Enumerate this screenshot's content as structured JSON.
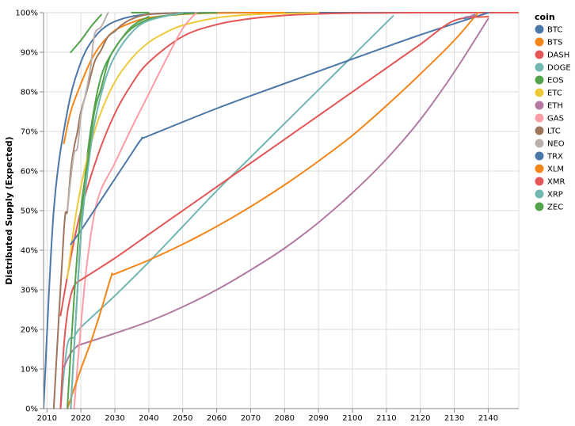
{
  "chart_data": {
    "type": "line",
    "xlabel": "",
    "ylabel": "Distributed Supply (Expected)",
    "xlim": [
      2009,
      2149
    ],
    "ylim": [
      0,
      100
    ],
    "x_ticks": [
      "2010",
      "2020",
      "2030",
      "2040",
      "2050",
      "2060",
      "2070",
      "2080",
      "2090",
      "2100",
      "2110",
      "2120",
      "2130",
      "2140"
    ],
    "y_ticks": [
      "0%",
      "10%",
      "20%",
      "30%",
      "40%",
      "50%",
      "60%",
      "70%",
      "80%",
      "90%",
      "100%"
    ],
    "grid": true,
    "legend_title": "coin",
    "legend_position": "right",
    "series": [
      {
        "name": "BTC",
        "color": "#4c78a8",
        "x": [
          2009,
          2012,
          2016,
          2020,
          2024,
          2028,
          2032,
          2036,
          2040,
          2048,
          2060,
          2080,
          2100,
          2120,
          2140
        ],
        "values": [
          0,
          50,
          75,
          87.5,
          93.75,
          96.9,
          98.4,
          99.2,
          99.6,
          99.9,
          99.98,
          100,
          100,
          100,
          100
        ]
      },
      {
        "name": "BTS",
        "color": "#f58518",
        "x": [
          2015,
          2017,
          2020,
          2023,
          2026,
          2030,
          2035,
          2040,
          2050,
          2060,
          2070,
          2080
        ],
        "values": [
          67,
          75,
          82,
          88,
          92,
          95.5,
          97.5,
          98.7,
          99.6,
          99.9,
          100,
          100
        ]
      },
      {
        "name": "DASH",
        "color": "#e45756",
        "x": [
          2014,
          2017,
          2020,
          2025,
          2030,
          2035,
          2040,
          2050,
          2060,
          2070,
          2080,
          2090,
          2100,
          2120,
          2150
        ],
        "values": [
          23.5,
          38,
          50,
          64,
          74.5,
          82,
          87.5,
          94,
          97,
          98.5,
          99.3,
          99.7,
          99.9,
          100,
          100
        ]
      },
      {
        "name": "DOGE",
        "color": "#72b7b2",
        "x": [
          2014,
          2016,
          2018,
          2020,
          2030,
          2040,
          2050,
          2060,
          2070,
          2080,
          2090,
          2100,
          2110,
          2112
        ],
        "values": [
          0,
          16,
          18,
          20.5,
          28.5,
          37,
          46,
          55,
          63.5,
          72,
          80.5,
          89,
          97.5,
          99.2
        ]
      },
      {
        "name": "EOS",
        "color": "#54a24b",
        "x": [
          2017,
          2019,
          2021,
          2023,
          2026,
          2030,
          2034,
          2038,
          2042,
          2050,
          2060
        ],
        "values": [
          0,
          30,
          56,
          71,
          84,
          91,
          95.3,
          97.6,
          98.8,
          99.7,
          100
        ]
      },
      {
        "name": "ETC",
        "color": "#eeca3b",
        "x": [
          2016,
          2018,
          2020,
          2023,
          2026,
          2030,
          2035,
          2040,
          2045,
          2050,
          2060,
          2070,
          2080,
          2090
        ],
        "values": [
          33,
          46,
          56,
          67,
          75,
          82.5,
          88.5,
          92.5,
          95,
          96.8,
          98.7,
          99.5,
          99.8,
          100
        ]
      },
      {
        "name": "ETH",
        "color": "#b279a2",
        "x": [
          2015,
          2017,
          2019,
          2020,
          2030,
          2040,
          2050,
          2060,
          2070,
          2080,
          2090,
          2100,
          2110,
          2120,
          2130,
          2140
        ],
        "values": [
          10.5,
          14,
          15.8,
          16.2,
          19,
          22,
          25.7,
          30,
          35,
          40.5,
          47,
          54.5,
          63,
          73,
          85,
          98.5
        ]
      },
      {
        "name": "GAS",
        "color": "#ff9da6",
        "x": [
          2018,
          2020,
          2022,
          2025,
          2030,
          2035,
          2040,
          2045,
          2050,
          2054
        ],
        "values": [
          0,
          21,
          38,
          53,
          62,
          71,
          79.5,
          88,
          96,
          100
        ]
      },
      {
        "name": "LTC",
        "color": "#9d755d",
        "x": [
          2012,
          2015,
          2016,
          2017,
          2018,
          2019,
          2020,
          2022,
          2024,
          2026,
          2028,
          2030,
          2032,
          2035,
          2040,
          2050
        ],
        "values": [
          0,
          45,
          50,
          60,
          66,
          70,
          75,
          81,
          87.5,
          90.6,
          94,
          95.3,
          96.9,
          98.4,
          99.6,
          100
        ]
      },
      {
        "name": "NEO",
        "color": "#bab0ac",
        "x": [
          2016,
          2017,
          2018,
          2019,
          2020,
          2021,
          2022,
          2023,
          2024,
          2026,
          2028
        ],
        "values": [
          50,
          58,
          64.5,
          66,
          74,
          78,
          82,
          87,
          94.5,
          96.5,
          100
        ]
      },
      {
        "name": "TRX",
        "color": "#4c78a8",
        "x": [
          2017,
          2020,
          2025,
          2030,
          2035,
          2038,
          2040,
          2060,
          2080,
          2100,
          2120,
          2140
        ],
        "values": [
          41.5,
          45,
          51.5,
          58,
          64.5,
          68.2,
          68.9,
          75.8,
          82.1,
          88.3,
          94.4,
          100
        ]
      },
      {
        "name": "XLM",
        "color": "#f58518",
        "x": [
          2016,
          2018,
          2020,
          2023,
          2026,
          2029,
          2030,
          2040,
          2050,
          2060,
          2070,
          2080,
          2090,
          2100,
          2110,
          2120,
          2130,
          2137
        ],
        "values": [
          0,
          5,
          10,
          17,
          25,
          33.5,
          34,
          37.5,
          41.5,
          46,
          51,
          56.5,
          62.5,
          69,
          76.5,
          84.5,
          93,
          100
        ]
      },
      {
        "name": "XMR",
        "color": "#e45756",
        "x": [
          2014,
          2015,
          2016,
          2017,
          2018,
          2019,
          2020,
          2030,
          2040,
          2050,
          2060,
          2070,
          2080,
          2090,
          2100,
          2110,
          2120,
          2130,
          2140
        ],
        "values": [
          0,
          16,
          24,
          28.5,
          31,
          32,
          32.5,
          38,
          44,
          50,
          56,
          62,
          68,
          74,
          80,
          86,
          92,
          98,
          99
        ]
      },
      {
        "name": "XRP",
        "color": "#72b7b2",
        "x": [
          2017,
          2018,
          2019,
          2020,
          2022,
          2024,
          2027,
          2030,
          2035,
          2040,
          2050
        ],
        "values": [
          0,
          15,
          30,
          44,
          60,
          72,
          82.5,
          89,
          95,
          98,
          100
        ]
      },
      {
        "name": "ZEC",
        "color": "#54a24b",
        "x": [
          2016,
          2018,
          2020,
          2022,
          2024,
          2026,
          2028,
          2030,
          2035,
          2040
        ],
        "values": [
          0,
          28,
          50,
          62.5,
          75,
          81,
          87.5,
          91,
          96.5,
          99
        ]
      },
      {
        "name": "ZEC",
        "color": "#54a24b",
        "x": [
          2017,
          2020,
          2023,
          2026
        ],
        "values": [
          90,
          93,
          96.5,
          99.5
        ]
      },
      {
        "name": "EOS",
        "color": "#54a24b",
        "x": [
          2035,
          2040
        ],
        "values": [
          100,
          100
        ]
      },
      {
        "name": "BTC",
        "color": "#4c78a8",
        "x": [
          2133,
          2136
        ],
        "values": [
          98.5,
          99.5
        ]
      },
      {
        "name": "ETH",
        "color": "#b279a2",
        "x": [
          2133,
          2136
        ],
        "values": [
          98.8,
          99.3
        ]
      }
    ]
  },
  "legend": {
    "title": "coin",
    "items": [
      {
        "name": "BTC",
        "color": "#4c78a8"
      },
      {
        "name": "BTS",
        "color": "#f58518"
      },
      {
        "name": "DASH",
        "color": "#e45756"
      },
      {
        "name": "DOGE",
        "color": "#72b7b2"
      },
      {
        "name": "EOS",
        "color": "#54a24b"
      },
      {
        "name": "ETC",
        "color": "#eeca3b"
      },
      {
        "name": "ETH",
        "color": "#b279a2"
      },
      {
        "name": "GAS",
        "color": "#ff9da6"
      },
      {
        "name": "LTC",
        "color": "#9d755d"
      },
      {
        "name": "NEO",
        "color": "#bab0ac"
      },
      {
        "name": "TRX",
        "color": "#4c78a8"
      },
      {
        "name": "XLM",
        "color": "#f58518"
      },
      {
        "name": "XMR",
        "color": "#e45756"
      },
      {
        "name": "XRP",
        "color": "#72b7b2"
      },
      {
        "name": "ZEC",
        "color": "#54a24b"
      }
    ]
  }
}
